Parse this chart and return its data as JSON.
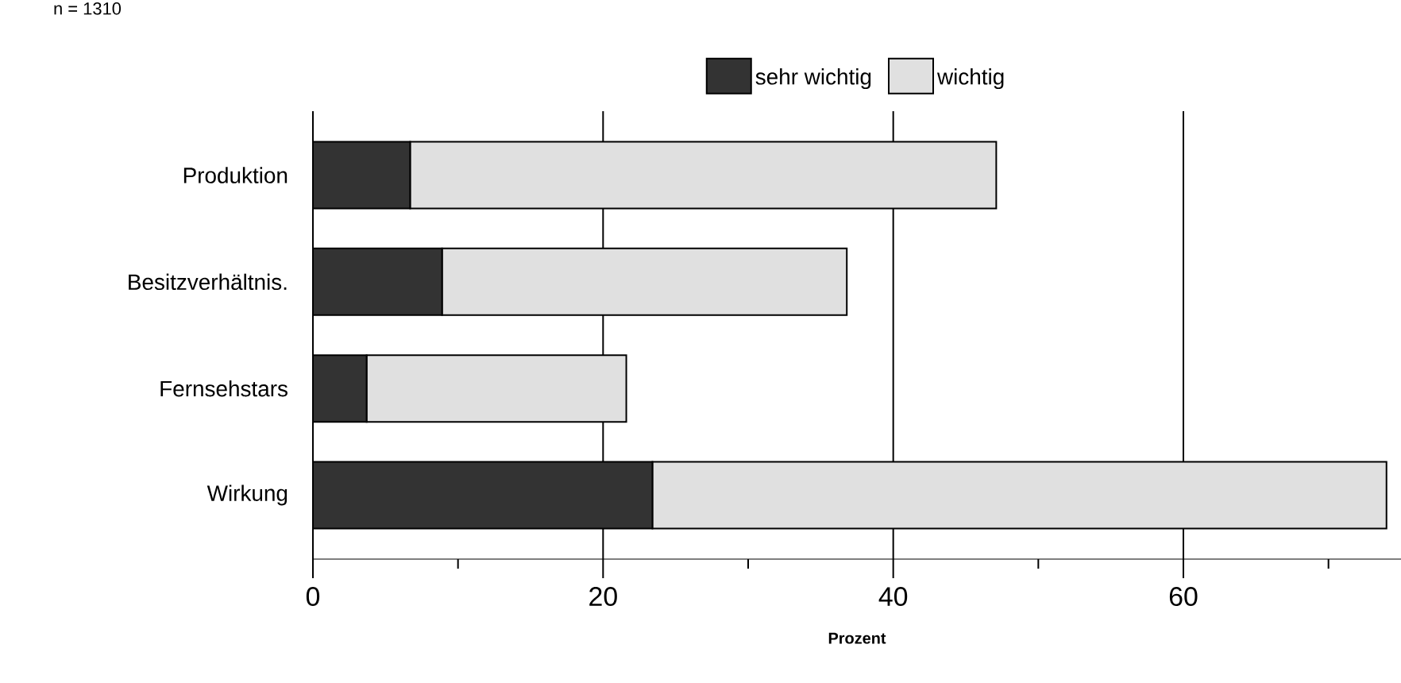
{
  "chart_data": {
    "type": "bar",
    "orientation": "horizontal",
    "stacked": true,
    "categories": [
      "Produktion",
      "Besitzverhältnis.",
      "Fernsehstars",
      "Wirkung"
    ],
    "series": [
      {
        "name": "sehr wichtig",
        "color": "#333333",
        "values": [
          6.7,
          8.9,
          3.7,
          23.4
        ]
      },
      {
        "name": "wichtig",
        "color": "#e0e0e0",
        "values": [
          40.4,
          27.9,
          17.9,
          50.6
        ]
      }
    ],
    "xlim": [
      0,
      75
    ],
    "xticks": [
      0,
      {
        "value": 10,
        "label": null
      },
      20,
      {
        "value": 30,
        "label": null
      },
      40,
      {
        "value": 50,
        "label": null
      },
      60,
      {
        "value": 70,
        "label": null
      }
    ],
    "xlabel": "Prozent",
    "grid": "x",
    "legend": "top",
    "annotations": [
      "n = 1310"
    ]
  }
}
